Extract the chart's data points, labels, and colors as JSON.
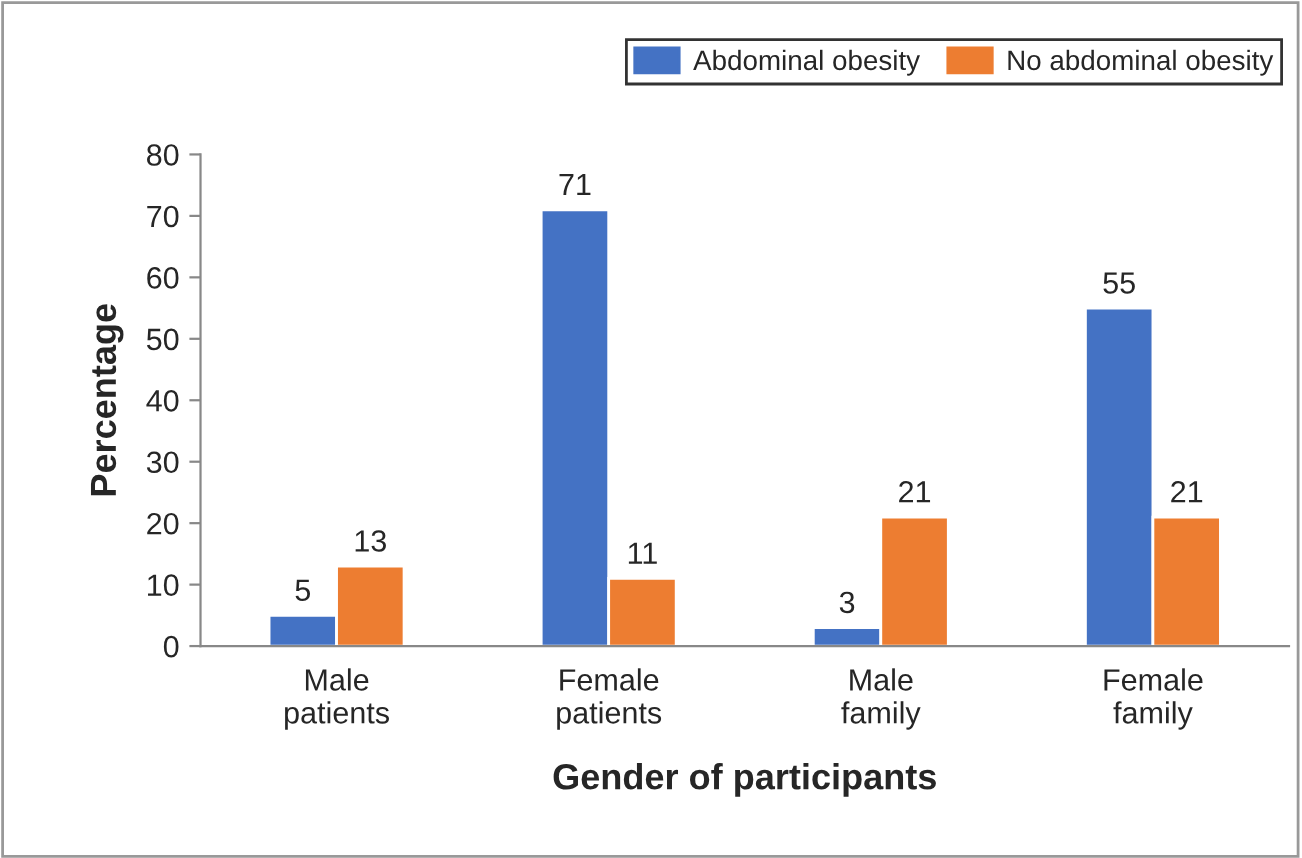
{
  "chart_data": {
    "type": "bar",
    "xlabel": "Gender of participants",
    "ylabel": "Percentage",
    "categories": [
      "Male\npatients",
      "Female\npatients",
      "Male\nfamily",
      "Female\nfamily"
    ],
    "series": [
      {
        "name": "Abdominal obesity",
        "color": "#4472c4",
        "values": [
          5,
          71,
          3,
          55
        ]
      },
      {
        "name": "No abdominal obesity",
        "color": "#ed7d31",
        "values": [
          13,
          11,
          21,
          21
        ]
      }
    ],
    "ylim": [
      0,
      80
    ],
    "yticks": [
      0,
      10,
      20,
      30,
      40,
      50,
      60,
      70,
      80
    ],
    "grid": false,
    "legend": "top right",
    "data_labels": true
  }
}
